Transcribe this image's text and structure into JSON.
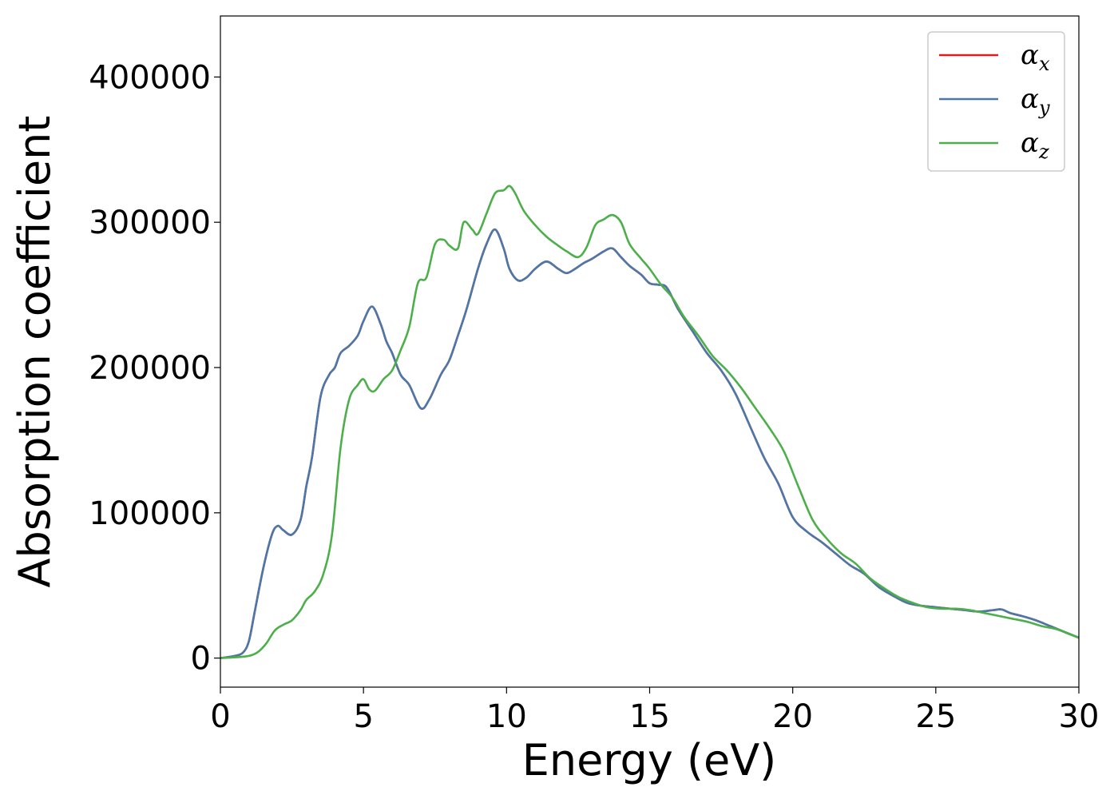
{
  "chart_data": {
    "type": "line",
    "title": "",
    "xlabel": "Energy (eV)",
    "ylabel": "Absorption coefficient",
    "xlim": [
      0,
      30
    ],
    "ylim": [
      -20000,
      442000
    ],
    "xticks": [
      0,
      5,
      10,
      15,
      20,
      25,
      30
    ],
    "yticks": [
      0,
      100000,
      200000,
      300000,
      400000
    ],
    "grid": false,
    "legend_position": "top-right",
    "series": [
      {
        "name": "α",
        "subscript": "x",
        "color": "#e41a1c",
        "x": [
          0,
          0.5,
          0.8,
          1.0,
          1.2,
          1.5,
          1.8,
          2.0,
          2.2,
          2.5,
          2.8,
          3.0,
          3.2,
          3.5,
          3.8,
          4.0,
          4.2,
          4.5,
          4.8,
          5.0,
          5.3,
          5.6,
          5.8,
          6.0,
          6.3,
          6.6,
          7.0,
          7.3,
          7.7,
          8.0,
          8.3,
          8.6,
          9.0,
          9.3,
          9.6,
          9.9,
          10.1,
          10.4,
          10.7,
          11.0,
          11.4,
          11.8,
          12.1,
          12.4,
          12.7,
          13.0,
          13.4,
          13.7,
          14.0,
          14.3,
          14.7,
          15.0,
          15.3,
          15.6,
          16.0,
          16.5,
          17.0,
          17.5,
          18.0,
          18.5,
          19.0,
          19.5,
          20.0,
          20.5,
          21.0,
          21.5,
          22.0,
          22.5,
          23.0,
          23.5,
          24.0,
          24.5,
          25.0,
          25.5,
          26.0,
          26.5,
          27.0,
          27.3,
          27.6,
          28.0,
          28.5,
          29.0,
          29.5,
          30.0
        ],
        "values": [
          0,
          1500,
          4000,
          12000,
          32000,
          62000,
          85000,
          91000,
          88000,
          85000,
          95000,
          118000,
          138000,
          180000,
          195000,
          200000,
          210000,
          215000,
          222000,
          232000,
          242000,
          230000,
          218000,
          210000,
          195000,
          188000,
          172000,
          178000,
          195000,
          205000,
          222000,
          240000,
          268000,
          285000,
          295000,
          282000,
          268000,
          260000,
          262000,
          268000,
          273000,
          268000,
          265000,
          268000,
          272000,
          275000,
          280000,
          282000,
          276000,
          270000,
          264000,
          258000,
          257000,
          255000,
          240000,
          225000,
          210000,
          198000,
          182000,
          160000,
          138000,
          120000,
          97000,
          87000,
          80000,
          72000,
          64000,
          58000,
          49000,
          43000,
          38000,
          36000,
          35000,
          34000,
          33000,
          32000,
          33000,
          33500,
          31000,
          29000,
          26000,
          22000,
          18000,
          14000
        ]
      },
      {
        "name": "α",
        "subscript": "y",
        "color": "#4a78a8",
        "x": [
          0,
          0.5,
          0.8,
          1.0,
          1.2,
          1.5,
          1.8,
          2.0,
          2.2,
          2.5,
          2.8,
          3.0,
          3.2,
          3.5,
          3.8,
          4.0,
          4.2,
          4.5,
          4.8,
          5.0,
          5.3,
          5.6,
          5.8,
          6.0,
          6.3,
          6.6,
          7.0,
          7.3,
          7.7,
          8.0,
          8.3,
          8.6,
          9.0,
          9.3,
          9.6,
          9.9,
          10.1,
          10.4,
          10.7,
          11.0,
          11.4,
          11.8,
          12.1,
          12.4,
          12.7,
          13.0,
          13.4,
          13.7,
          14.0,
          14.3,
          14.7,
          15.0,
          15.3,
          15.6,
          16.0,
          16.5,
          17.0,
          17.5,
          18.0,
          18.5,
          19.0,
          19.5,
          20.0,
          20.5,
          21.0,
          21.5,
          22.0,
          22.5,
          23.0,
          23.5,
          24.0,
          24.5,
          25.0,
          25.5,
          26.0,
          26.5,
          27.0,
          27.3,
          27.6,
          28.0,
          28.5,
          29.0,
          29.5,
          30.0
        ],
        "values": [
          0,
          1500,
          4000,
          12000,
          32000,
          62000,
          85000,
          91000,
          88000,
          85000,
          95000,
          118000,
          138000,
          180000,
          195000,
          200000,
          210000,
          215000,
          222000,
          232000,
          242000,
          230000,
          218000,
          210000,
          195000,
          188000,
          172000,
          178000,
          195000,
          205000,
          222000,
          240000,
          268000,
          285000,
          295000,
          282000,
          268000,
          260000,
          262000,
          268000,
          273000,
          268000,
          265000,
          268000,
          272000,
          275000,
          280000,
          282000,
          276000,
          270000,
          264000,
          258000,
          257000,
          255000,
          240000,
          225000,
          210000,
          198000,
          182000,
          160000,
          138000,
          120000,
          97000,
          87000,
          80000,
          72000,
          64000,
          58000,
          49000,
          43000,
          38000,
          36000,
          35000,
          34000,
          33000,
          32000,
          33000,
          33500,
          31000,
          29000,
          26000,
          22000,
          18000,
          14000
        ]
      },
      {
        "name": "α",
        "subscript": "z",
        "color": "#4daf4a",
        "x": [
          0,
          0.5,
          1.0,
          1.3,
          1.6,
          1.9,
          2.2,
          2.5,
          2.8,
          3.0,
          3.3,
          3.6,
          3.9,
          4.2,
          4.5,
          4.8,
          5.0,
          5.2,
          5.4,
          5.7,
          6.0,
          6.3,
          6.6,
          6.9,
          7.2,
          7.5,
          7.8,
          8.0,
          8.3,
          8.5,
          8.8,
          9.0,
          9.3,
          9.6,
          9.9,
          10.1,
          10.3,
          10.6,
          11.0,
          11.4,
          11.8,
          12.1,
          12.5,
          12.8,
          13.1,
          13.4,
          13.7,
          14.0,
          14.3,
          14.7,
          15.0,
          15.4,
          15.8,
          16.2,
          16.7,
          17.2,
          17.7,
          18.2,
          18.7,
          19.2,
          19.7,
          20.2,
          20.7,
          21.2,
          21.7,
          22.2,
          22.7,
          23.2,
          23.7,
          24.2,
          24.7,
          25.2,
          25.7,
          26.2,
          26.7,
          27.2,
          27.7,
          28.2,
          28.7,
          29.2,
          29.6,
          30.0
        ],
        "values": [
          0,
          500,
          1500,
          4000,
          10000,
          19000,
          23000,
          26000,
          33000,
          40000,
          46000,
          58000,
          85000,
          145000,
          178000,
          188000,
          192000,
          185000,
          184000,
          192000,
          198000,
          212000,
          228000,
          258000,
          262000,
          285000,
          288000,
          284000,
          282000,
          300000,
          295000,
          292000,
          306000,
          320000,
          322000,
          325000,
          320000,
          308000,
          298000,
          290000,
          284000,
          280000,
          276000,
          283000,
          298000,
          302000,
          305000,
          300000,
          285000,
          275000,
          268000,
          257000,
          248000,
          235000,
          222000,
          208000,
          198000,
          186000,
          172000,
          158000,
          142000,
          118000,
          95000,
          82000,
          72000,
          65000,
          55000,
          48000,
          42000,
          38000,
          35000,
          34000,
          34000,
          33000,
          31000,
          29000,
          27000,
          25000,
          22000,
          20000,
          17000,
          14000
        ]
      }
    ]
  }
}
